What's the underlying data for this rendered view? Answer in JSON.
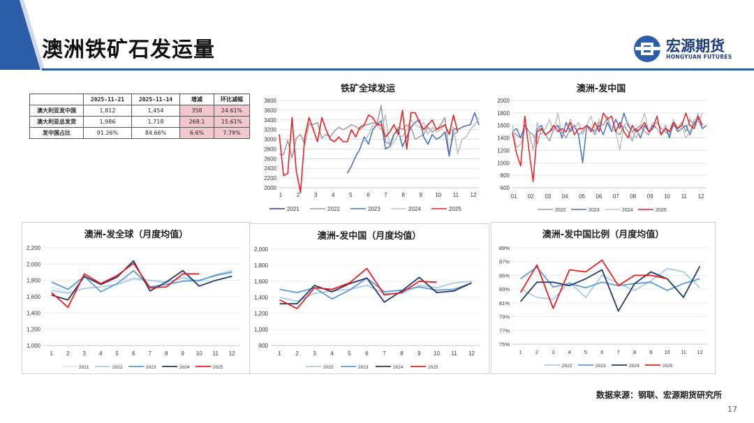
{
  "title": "澳洲铁矿石发运量",
  "logo": {
    "name": "宏源期货",
    "sub": "HONGYUAN FUTURES"
  },
  "table": {
    "headers": [
      "",
      "2025-11-21",
      "2025-11-14",
      "增减",
      "环比减幅"
    ],
    "rows": [
      [
        "澳大利亚发中国",
        "1,812",
        "1,454",
        "358",
        "24.61%"
      ],
      [
        "澳大利亚总发货",
        "1,986",
        "1,718",
        "268.1",
        "15.61%"
      ],
      [
        "发中国占比",
        "91.26%",
        "84.66%",
        "6.6%",
        "7.79%"
      ]
    ]
  },
  "source": "数据来源：钢联、宏源期货研究所",
  "page_number": "17",
  "colors": {
    "2021": "#1f3f8f",
    "2022": "#9e9e9e",
    "2023": "#4472c4",
    "2024": "#c0c0c0",
    "2025": "#ee1c1c",
    "m2021": "#dbe8f6",
    "m2022": "#a8cbe6",
    "m2023": "#5b9bd5",
    "m2024": "#1f3864",
    "m2025": "#ee1c1c"
  },
  "chart_data": [
    {
      "id": "global",
      "type": "line",
      "title": "铁矿全球发运",
      "xlabel": "",
      "ylabel": "",
      "x_ticks": [
        "1",
        "2",
        "3",
        "4",
        "5",
        "6",
        "7",
        "8",
        "9",
        "10",
        "11",
        "12"
      ],
      "ylim": [
        2000,
        3800
      ],
      "y_ticks": [
        2000,
        2200,
        2400,
        2600,
        2800,
        3000,
        3200,
        3400,
        3600,
        3800
      ],
      "legend": [
        "2021",
        "2022",
        "2023",
        "2024",
        "2025"
      ],
      "legend_position": "bottom",
      "series": [
        {
          "name": "2021",
          "values": []
        },
        {
          "name": "2022",
          "values": [
            2700,
            2680,
            2980,
            2620,
            3020,
            3100,
            2900,
            3320,
            3300,
            3350,
            3020,
            3100,
            3050,
            3170,
            3250,
            3200,
            3240,
            3300,
            3260,
            3200,
            3280,
            3310,
            3340,
            3320,
            3700,
            2950,
            2900,
            3100,
            3250,
            3200,
            3300,
            3250,
            3000,
            3050,
            3100,
            3250,
            3150,
            3200,
            3300,
            3450,
            2680,
            3100,
            3150
          ]
        },
        {
          "name": "2023",
          "values": [
            null,
            null,
            null,
            null,
            null,
            null,
            null,
            null,
            null,
            null,
            null,
            null,
            null,
            null,
            null,
            null,
            2300,
            2450,
            2650,
            2800,
            3050,
            2900,
            3200,
            3300,
            3380,
            2800,
            2850,
            3100,
            3200,
            2850,
            3050,
            3250,
            3350,
            3400,
            3050,
            2900,
            3100,
            3000,
            3050,
            3150,
            2650,
            3220,
            3200,
            3250,
            3280,
            3300,
            3550,
            3300
          ]
        },
        {
          "name": "2024",
          "values": [
            null,
            null,
            null,
            null,
            null,
            null,
            null,
            null,
            null,
            null,
            null,
            null,
            null,
            null,
            null,
            null,
            null,
            null,
            null,
            null,
            2950,
            3100,
            3280,
            3300,
            3200,
            3500,
            2820,
            2950,
            3100,
            3050,
            3200,
            3400,
            3300,
            3250,
            3350,
            3100,
            3250,
            3150,
            3200,
            3300,
            3100,
            3250,
            2700,
            3000,
            3050,
            3200,
            3300,
            3450
          ]
        },
        {
          "name": "2025",
          "values": [
            3100,
            2250,
            2300,
            3450,
            2350,
            1900,
            3050,
            3450,
            3200,
            2950,
            3450,
            3200,
            3000,
            2950,
            3050,
            2950,
            2950,
            3200,
            3050,
            3250,
            3300,
            3500,
            3450,
            3300,
            3300,
            3050,
            3150,
            3300,
            3100,
            3600,
            2800,
            3550,
            3550,
            3350,
            3200,
            3300,
            3400,
            3200,
            3250,
            3300,
            3100,
            3500,
            3150
          ]
        }
      ]
    },
    {
      "id": "china",
      "type": "line",
      "title": "澳洲-发中国",
      "xlabel": "",
      "ylabel": "",
      "x_ticks": [
        "01",
        "02",
        "03",
        "04",
        "05",
        "06",
        "07",
        "08",
        "09",
        "10",
        "11",
        "12"
      ],
      "ylim": [
        600,
        2000
      ],
      "y_ticks": [
        600,
        800,
        1000,
        1200,
        1400,
        1600,
        1800,
        2000
      ],
      "legend": [
        "2022",
        "2023",
        "2024",
        "2025"
      ],
      "legend_position": "bottom",
      "series": [
        {
          "name": "2022",
          "values": [
            1500,
            1450,
            1400,
            1600,
            1500,
            1450,
            1300,
            1550,
            1450,
            1350,
            1550,
            1600,
            1500,
            1400,
            1550,
            1600,
            1450,
            1500,
            1600,
            1550,
            1450,
            1650,
            1600,
            1700,
            1550,
            1500,
            1450,
            1600,
            1500,
            1350,
            1550,
            1600,
            1500,
            1450,
            1600,
            1650,
            1550,
            1500,
            1450,
            1600,
            1550,
            1650,
            1500,
            1700,
            1600,
            1800
          ]
        },
        {
          "name": "2023",
          "values": [
            1500,
            1550,
            1400,
            1600,
            1500,
            1200,
            1550,
            1600,
            1450,
            1500,
            1550,
            1600,
            1400,
            1650,
            1500,
            1600,
            1450,
            1000,
            1600,
            1550,
            1500,
            1600,
            1450,
            1650,
            1500,
            1700,
            1550,
            1800,
            1600,
            1500,
            1550,
            1400,
            1600,
            1500,
            1600,
            1550,
            1450,
            1600,
            1400,
            1650,
            1500,
            1550,
            1600,
            1450,
            1650,
            1700,
            1550,
            1600
          ]
        },
        {
          "name": "2024",
          "values": [
            1600,
            1250,
            1300,
            1550,
            1500,
            1200,
            1650,
            1450,
            1550,
            1700,
            1500,
            1800,
            1450,
            1500,
            1700,
            1550,
            1650,
            1450,
            1600,
            1750,
            1500,
            1700,
            1600,
            1750,
            1550,
            1500,
            1200,
            1600,
            1650,
            1500,
            1400,
            1600,
            1800,
            1500,
            1650,
            1550,
            1450,
            1600,
            1500,
            1700,
            1550,
            1600,
            1400,
            1500,
            1700,
            1650,
            1800
          ]
        },
        {
          "name": "2025",
          "values": [
            1480,
            1150,
            950,
            1750,
            1200,
            700,
            1500,
            1550,
            1450,
            1500,
            1600,
            1500,
            1550,
            1500,
            1650,
            1450,
            1550,
            1550,
            1600,
            1500,
            1650,
            1500,
            1800,
            1700,
            1750,
            1500,
            1650,
            1500,
            1400,
            1600,
            1500,
            1550,
            1650,
            1500,
            1550,
            1750,
            1450,
            1550,
            1500,
            1650,
            1550,
            1600,
            1800,
            1600,
            1550,
            1750,
            1600
          ]
        }
      ]
    },
    {
      "id": "m_global",
      "type": "line",
      "title": "澳洲-发全球（月度均值）",
      "xlabel": "",
      "ylabel": "",
      "x_ticks": [
        "1",
        "2",
        "3",
        "4",
        "5",
        "6",
        "7",
        "8",
        "9",
        "10",
        "11",
        "12"
      ],
      "ylim": [
        1000,
        2200
      ],
      "y_ticks": [
        "1,000",
        "1,200",
        "1,400",
        "1,600",
        "1,800",
        "2,000",
        "2,200"
      ],
      "y_tick_values": [
        1000,
        1200,
        1400,
        1600,
        1800,
        2000,
        2200
      ],
      "legend": [
        "2021",
        "2022",
        "2023",
        "2024",
        "2025"
      ],
      "legend_position": "bottom",
      "series": [
        {
          "name": "2021",
          "values": [
            1720,
            1650,
            1840,
            1750,
            1800,
            1830,
            1800,
            1760,
            1850,
            1790,
            1800,
            1850
          ]
        },
        {
          "name": "2022",
          "values": [
            1680,
            1640,
            1700,
            1720,
            1750,
            1820,
            1800,
            1780,
            1830,
            1790,
            1870,
            1920
          ]
        },
        {
          "name": "2023",
          "values": [
            1780,
            1690,
            1850,
            1660,
            1760,
            1920,
            1720,
            1750,
            1790,
            1800,
            1860,
            1900
          ]
        },
        {
          "name": "2024",
          "values": [
            1620,
            1560,
            1850,
            1750,
            1840,
            2040,
            1670,
            1780,
            1920,
            1730,
            1800,
            1850
          ]
        },
        {
          "name": "2025",
          "values": [
            1650,
            1470,
            1880,
            1760,
            1860,
            2010,
            1710,
            1720,
            1880,
            1880,
            null,
            null
          ]
        }
      ]
    },
    {
      "id": "m_china",
      "type": "line",
      "title": "澳洲-发中国（月度均值）",
      "xlabel": "",
      "ylabel": "",
      "x_ticks": [
        "1",
        "2",
        "3",
        "4",
        "5",
        "6",
        "7",
        "8",
        "9",
        "10",
        "11",
        "12"
      ],
      "ylim": [
        800,
        2000
      ],
      "y_ticks": [
        "800",
        "1,000",
        "1,200",
        "1,400",
        "1,600",
        "1,800",
        "2,000"
      ],
      "y_tick_values": [
        800,
        1000,
        1200,
        1400,
        1600,
        1800,
        2000
      ],
      "legend": [
        "2022",
        "2023",
        "2024",
        "2025"
      ],
      "legend_position": "bottom",
      "series": [
        {
          "name": "2022",
          "values": [
            1400,
            1350,
            1450,
            1480,
            1500,
            1550,
            1450,
            1450,
            1550,
            1520,
            1580,
            1600
          ]
        },
        {
          "name": "2023",
          "values": [
            1500,
            1460,
            1520,
            1380,
            1490,
            1640,
            1470,
            1490,
            1530,
            1490,
            1500,
            1580
          ]
        },
        {
          "name": "2024",
          "values": [
            1320,
            1320,
            1550,
            1470,
            1570,
            1640,
            1340,
            1480,
            1650,
            1460,
            1480,
            1580
          ]
        },
        {
          "name": "2025",
          "values": [
            1370,
            1260,
            1520,
            1500,
            1580,
            1760,
            1430,
            1460,
            1600,
            1590,
            null,
            null
          ]
        }
      ]
    },
    {
      "id": "m_ratio",
      "type": "line",
      "title": "澳洲-发中国比例（月度均值）",
      "xlabel": "",
      "ylabel": "",
      "x_ticks": [
        "1",
        "2",
        "3",
        "4",
        "5",
        "6",
        "7",
        "8",
        "9",
        "10",
        "11",
        "12"
      ],
      "ylim": [
        75,
        89
      ],
      "y_ticks": [
        "75%",
        "77%",
        "79%",
        "81%",
        "83%",
        "85%",
        "87%",
        "89%"
      ],
      "y_tick_values": [
        75,
        77,
        79,
        81,
        83,
        85,
        87,
        89
      ],
      "legend": [
        "2022",
        "2023",
        "2024",
        "2025"
      ],
      "legend_position": "bottom",
      "series": [
        {
          "name": "2022",
          "values": [
            83.0,
            81.8,
            81.5,
            84.0,
            81.8,
            85.0,
            83.8,
            82.8,
            84.2,
            86.0,
            85.5,
            83.2
          ]
        },
        {
          "name": "2023",
          "values": [
            84.5,
            86.2,
            83.3,
            83.8,
            83.2,
            84.0,
            83.5,
            83.8,
            84.0,
            82.8,
            83.8,
            84.5
          ]
        },
        {
          "name": "2024",
          "values": [
            81.2,
            84.0,
            84.0,
            83.5,
            84.5,
            85.8,
            79.8,
            83.8,
            85.5,
            84.5,
            81.8,
            86.3
          ]
        },
        {
          "name": "2025",
          "values": [
            82.5,
            86.5,
            80.2,
            85.8,
            85.5,
            87.2,
            83.5,
            85.0,
            85.0,
            84.5,
            null,
            null
          ]
        }
      ]
    }
  ]
}
